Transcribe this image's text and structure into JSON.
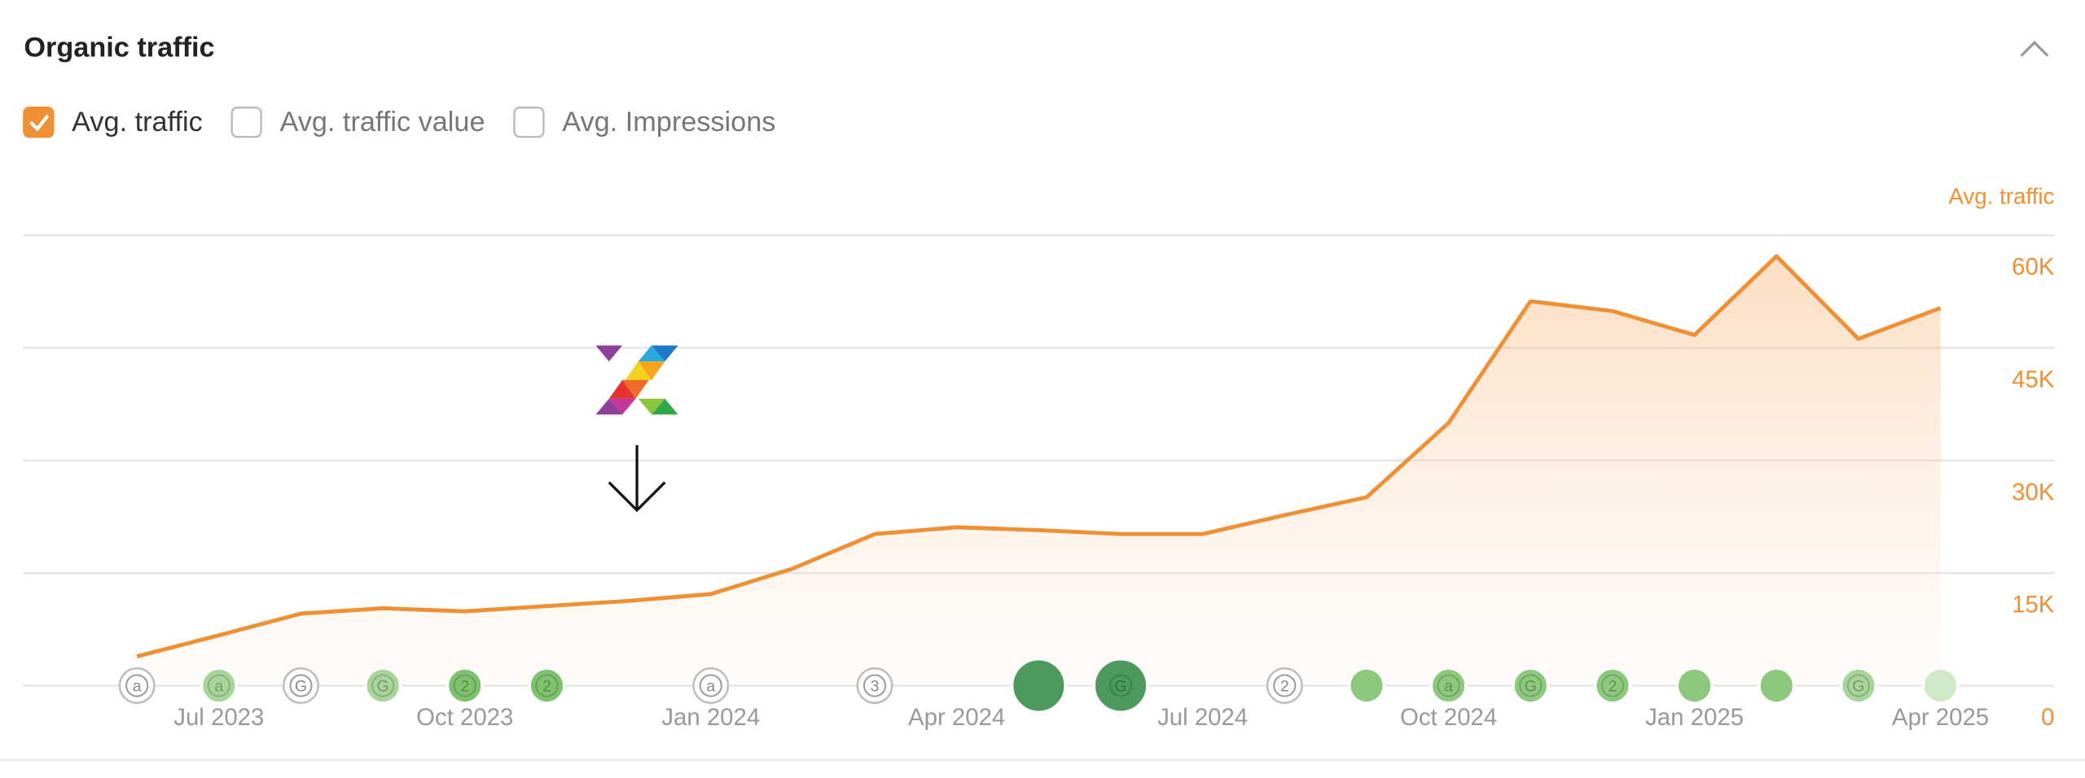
{
  "header": {
    "title": "Organic traffic"
  },
  "toggles": [
    {
      "label": "Avg. traffic",
      "checked": true
    },
    {
      "label": "Avg. traffic value",
      "checked": false
    },
    {
      "label": "Avg. Impressions",
      "checked": false
    }
  ],
  "chart_data": {
    "type": "area",
    "y_axis_label": "Avg. traffic",
    "color": "#ef9035",
    "categories": [
      null,
      "Jul 2023",
      null,
      null,
      "Oct 2023",
      null,
      null,
      "Jan 2024",
      null,
      null,
      "Apr 2024",
      null,
      null,
      "Jul 2024",
      null,
      null,
      "Oct 2024",
      null,
      null,
      "Jan 2025",
      null,
      null,
      "Apr 2025"
    ],
    "values": [
      3900,
      6700,
      9600,
      10300,
      9900,
      10600,
      11300,
      12200,
      15600,
      20200,
      21100,
      20700,
      20200,
      20200,
      22700,
      25100,
      35000,
      51200,
      49900,
      46700,
      57200,
      46200,
      50300
    ],
    "ylim": [
      0,
      60000
    ],
    "yticks": [
      0,
      {
        "value": 15000,
        "label": "15K"
      },
      {
        "value": 30000,
        "label": "30K"
      },
      {
        "value": 45000,
        "label": "45K"
      },
      {
        "value": 60000,
        "label": "60K"
      }
    ],
    "grid": true,
    "events": [
      {
        "label": "a",
        "color": "#bdbdbd"
      },
      {
        "label": "a",
        "color": "#a8d69a"
      },
      {
        "label": "G",
        "color": "#bdbdbd"
      },
      {
        "label": "G",
        "color": "#a8d69a"
      },
      {
        "label": "2",
        "color": "#7fc26e"
      },
      {
        "label": "2",
        "color": "#7fc26e"
      },
      null,
      {
        "label": "a",
        "color": "#bdbdbd"
      },
      null,
      {
        "label": "3",
        "color": "#bdbdbd"
      },
      null,
      {
        "color": "#4e9a5e"
      },
      {
        "label": "G",
        "color": "#4e9a5e"
      },
      null,
      {
        "label": "2",
        "color": "#bdbdbd"
      },
      {
        "color": "#8cc97c"
      },
      {
        "label": "a",
        "color": "#8cc97c"
      },
      {
        "label": "G",
        "color": "#8cc97c"
      },
      {
        "label": "2",
        "color": "#8cc97c"
      },
      {
        "color": "#8cc97c"
      },
      {
        "color": "#8cc97c"
      },
      {
        "label": "G",
        "color": "#a8d69a"
      },
      {
        "color": "#cfe9c6"
      }
    ]
  }
}
